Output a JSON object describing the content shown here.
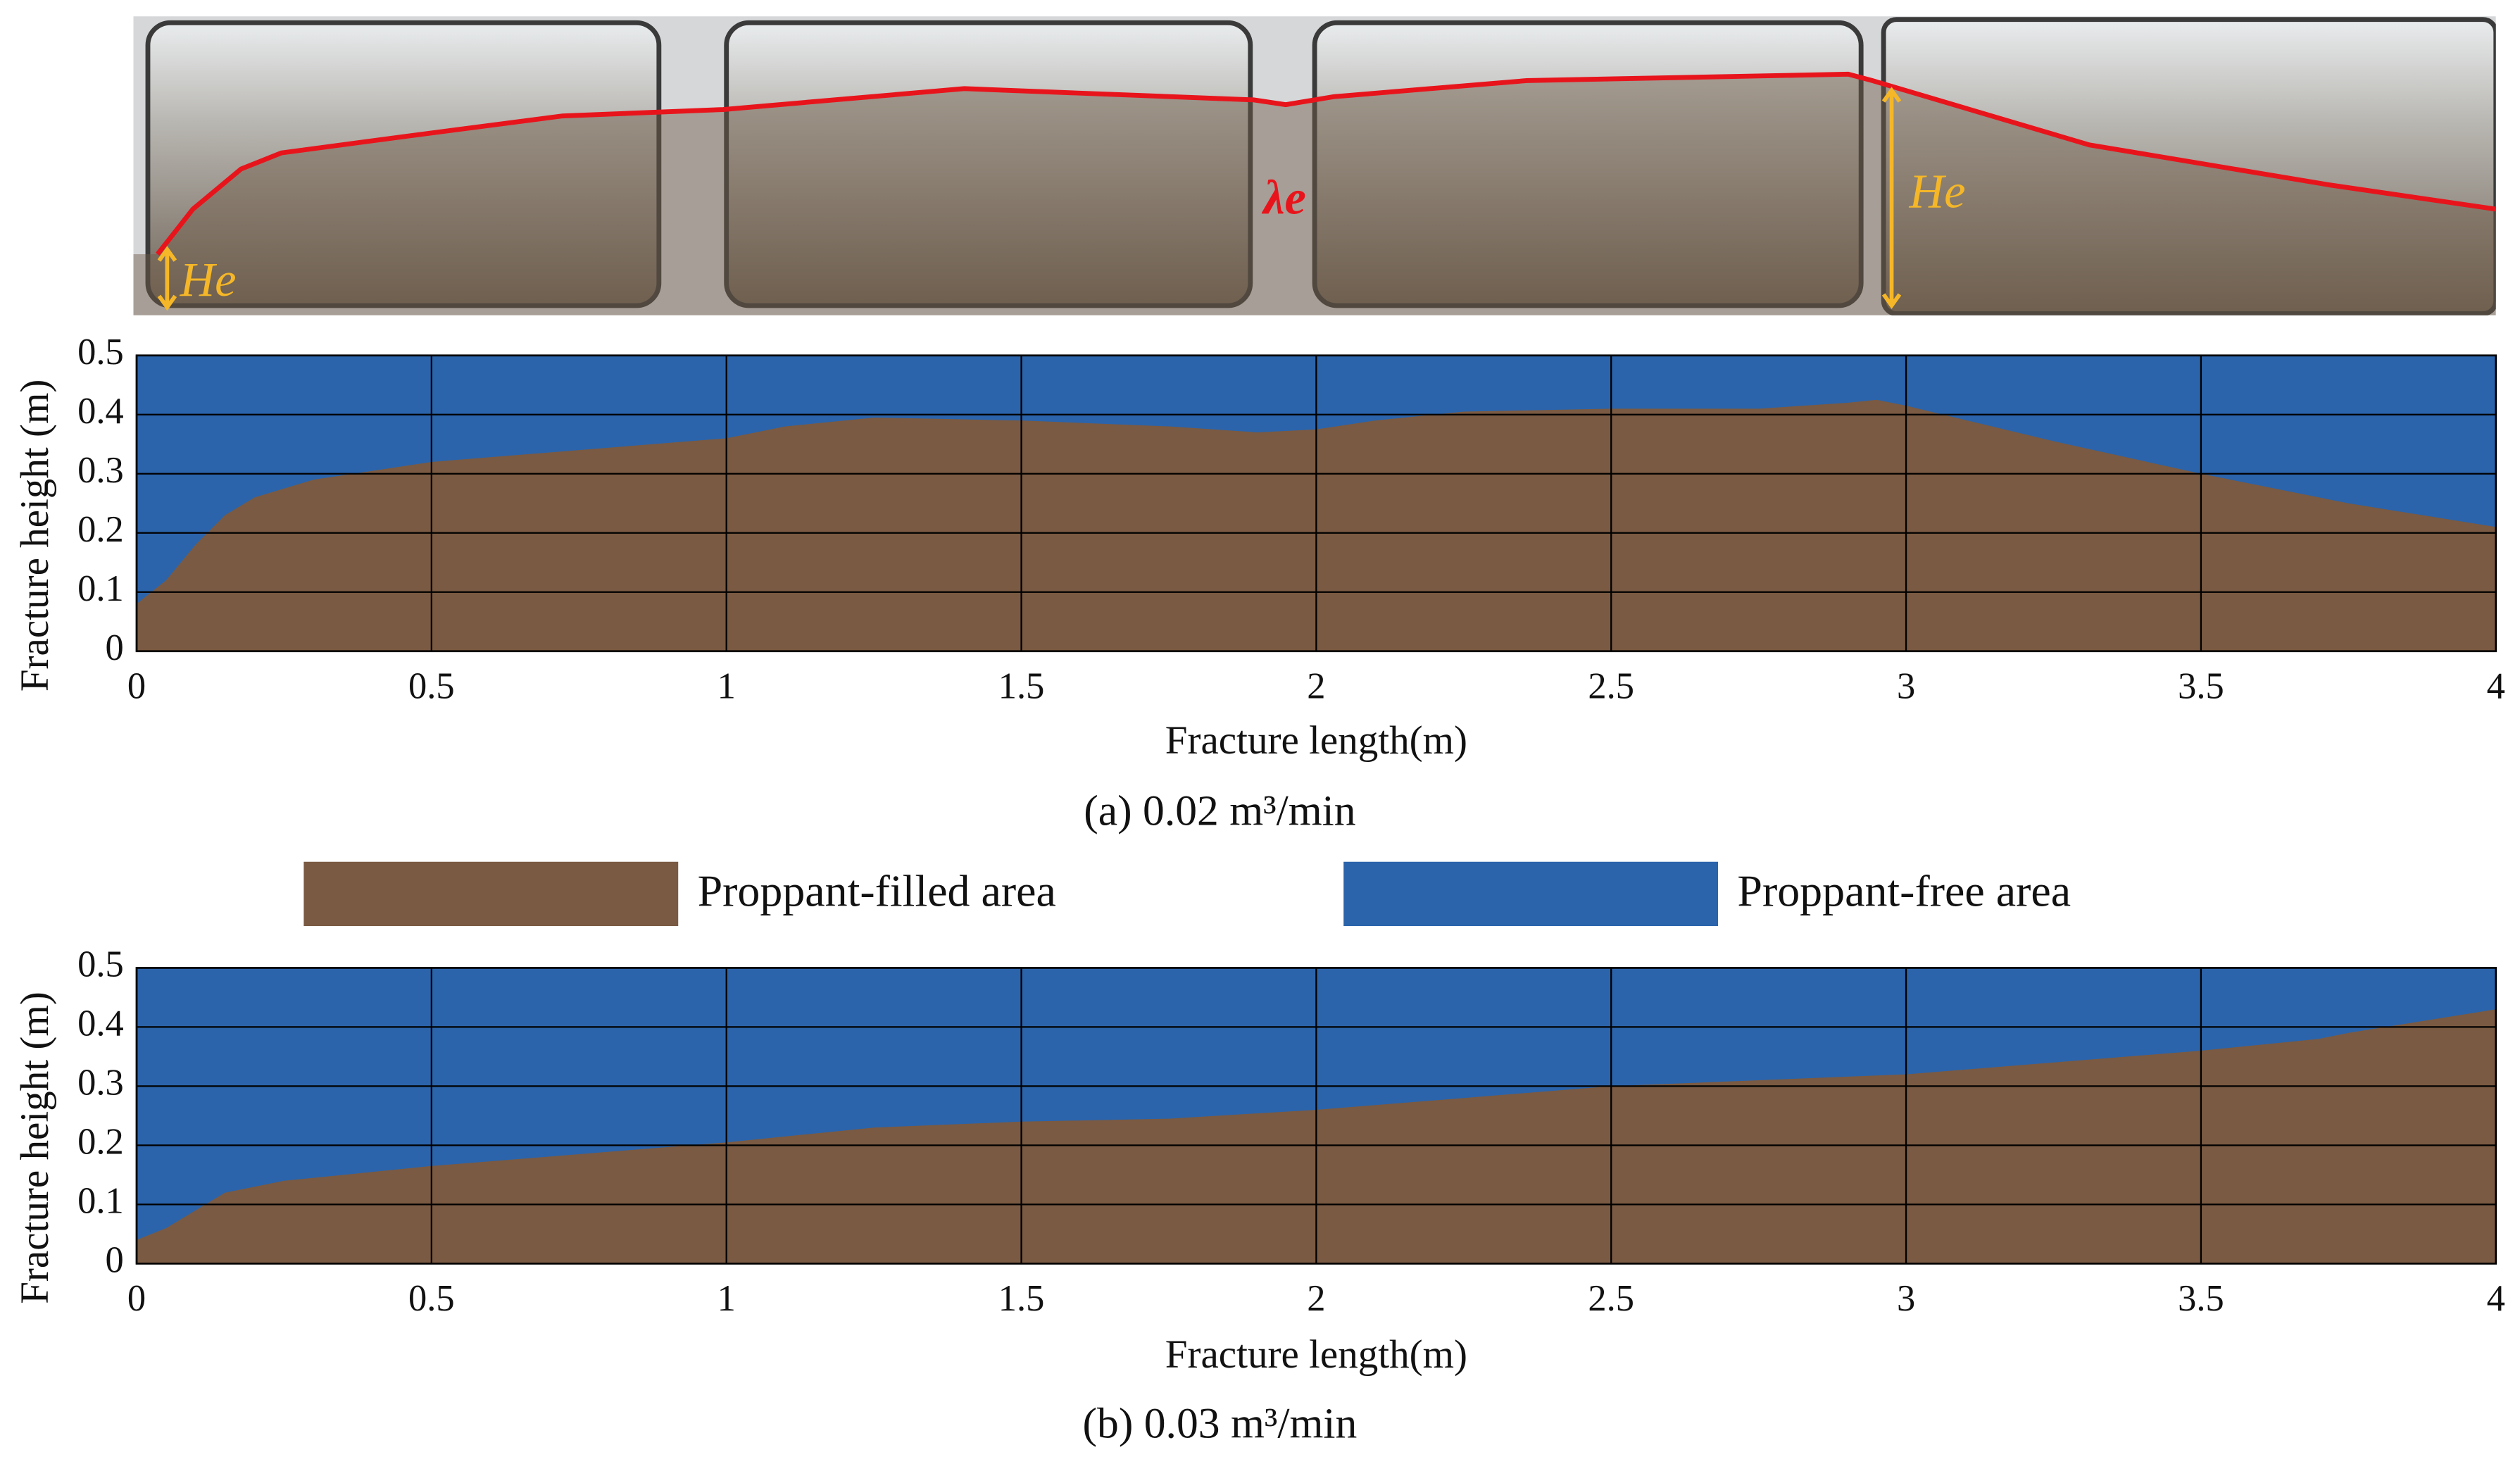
{
  "photo": {
    "annotations": [
      "He",
      "λe",
      "He"
    ]
  },
  "legend": [
    {
      "name": "Proppant-filled area",
      "color": "#7a5a42"
    },
    {
      "name": "Proppant-free area",
      "color": "#2b64ab"
    }
  ],
  "chart_data": [
    {
      "type": "area",
      "caption": "(a) 0.02 m³/min",
      "x_label": "Fracture length(m)",
      "y_label": "Fracture height (m)",
      "x": [
        0,
        0.05,
        0.1,
        0.15,
        0.2,
        0.3,
        0.5,
        0.75,
        1,
        1.1,
        1.25,
        1.5,
        1.75,
        1.9,
        2,
        2.1,
        2.25,
        2.5,
        2.75,
        2.9,
        2.95,
        3,
        3.25,
        3.5,
        3.75,
        4
      ],
      "values": [
        0.08,
        0.12,
        0.18,
        0.23,
        0.26,
        0.29,
        0.32,
        0.34,
        0.36,
        0.38,
        0.395,
        0.39,
        0.38,
        0.37,
        0.375,
        0.39,
        0.405,
        0.41,
        0.41,
        0.42,
        0.425,
        0.415,
        0.355,
        0.3,
        0.25,
        0.21
      ],
      "xlim": [
        0,
        4
      ],
      "ylim": [
        0,
        0.5
      ],
      "xticks": [
        0,
        0.5,
        1,
        1.5,
        2,
        2.5,
        3,
        3.5,
        4
      ],
      "yticks": [
        0,
        0.1,
        0.2,
        0.3,
        0.4,
        0.5
      ],
      "grid": true
    },
    {
      "type": "area",
      "caption": "(b) 0.03 m³/min",
      "x_label": "Fracture length(m)",
      "y_label": "Fracture height (m)",
      "x": [
        0,
        0.05,
        0.1,
        0.15,
        0.25,
        0.5,
        0.75,
        1,
        1.25,
        1.5,
        1.75,
        2,
        2.25,
        2.5,
        2.75,
        3,
        3.25,
        3.5,
        3.7,
        3.75,
        4
      ],
      "values": [
        0.04,
        0.06,
        0.09,
        0.12,
        0.14,
        0.165,
        0.185,
        0.205,
        0.23,
        0.24,
        0.245,
        0.26,
        0.28,
        0.3,
        0.31,
        0.32,
        0.34,
        0.36,
        0.38,
        0.39,
        0.43
      ],
      "xlim": [
        0,
        4
      ],
      "ylim": [
        0,
        0.5
      ],
      "xticks": [
        0,
        0.5,
        1,
        1.5,
        2,
        2.5,
        3,
        3.5,
        4
      ],
      "yticks": [
        0,
        0.1,
        0.2,
        0.3,
        0.4,
        0.5
      ],
      "grid": true
    }
  ]
}
